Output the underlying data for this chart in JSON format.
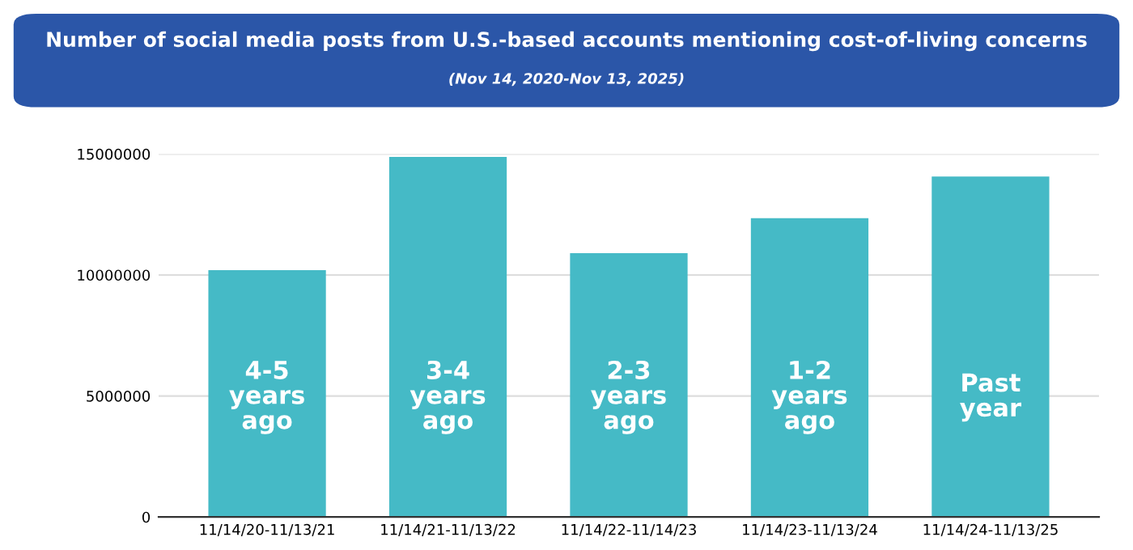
{
  "chart_data": {
    "type": "bar",
    "title": "Number of social media posts from U.S.-based accounts mentioning cost-of-living concerns",
    "subtitle": "(Nov 14, 2020-Nov 13, 2025)",
    "categories": [
      "11/14/20-11/13/21",
      "11/14/21-11/13/22",
      "11/14/22-11/14/23",
      "11/14/23-11/13/24",
      "11/14/24-11/13/25"
    ],
    "values": [
      10200000,
      14880000,
      10900000,
      12350000,
      14070000
    ],
    "color": "#45bac6",
    "ylim": [
      0,
      15000000
    ],
    "yticks": [
      0,
      5000000,
      10000000,
      15000000
    ],
    "grid": "y",
    "annotations": [
      "4-5\nyears\nago",
      "3-4\nyears\nago",
      "2-3\nyears\nago",
      "1-2\nyears\nago",
      "Past\nyear"
    ]
  }
}
